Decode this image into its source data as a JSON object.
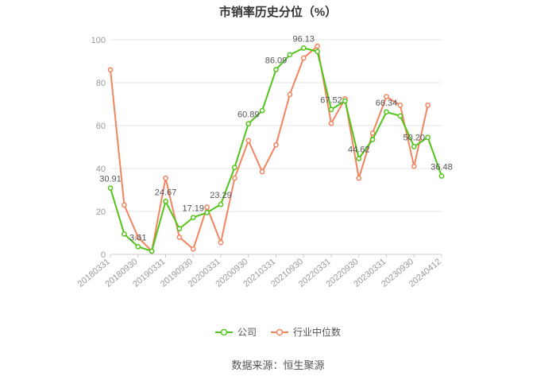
{
  "chart_data": {
    "type": "line",
    "title": "市销率历史分位（%）",
    "ylim": [
      0,
      100
    ],
    "y_ticks": [
      0,
      20,
      40,
      60,
      80,
      100
    ],
    "x_tick_labels": [
      "20180331",
      "20180930",
      "20190331",
      "20190930",
      "20200331",
      "20200930",
      "20210331",
      "20210930",
      "20220331",
      "20220930",
      "20230331",
      "20230930",
      "20240412"
    ],
    "grid": true,
    "legend_position": "bottom",
    "series": [
      {
        "name": "公司",
        "color": "#52c41a",
        "values": [
          30.91,
          9.5,
          3.61,
          1.5,
          24.67,
          12.0,
          17.19,
          19.5,
          23.29,
          40.5,
          60.89,
          67.0,
          86.09,
          93.0,
          96.13,
          94.5,
          67.52,
          71.5,
          44.62,
          53.5,
          66.34,
          64.5,
          50.2,
          54.5,
          36.48
        ],
        "labels": {
          "0": "30.91",
          "2": "3.61",
          "4": "24.67",
          "6": "17.19",
          "8": "23.29",
          "10": "60.89",
          "12": "86.09",
          "14": "96.13",
          "16": "67.52",
          "18": "44.62",
          "20": "66.34",
          "22": "50.20",
          "24": "36.48"
        }
      },
      {
        "name": "行业中位数",
        "color": "#f4845f",
        "values": [
          86.0,
          23.0,
          8.0,
          1.5,
          35.5,
          8.0,
          2.5,
          22.0,
          5.5,
          35.5,
          53.0,
          38.5,
          51.0,
          74.5,
          91.5,
          97.0,
          61.0,
          72.5,
          35.5,
          56.5,
          73.5,
          69.5,
          41.0,
          69.5,
          null
        ]
      }
    ]
  },
  "source_text": "数据来源：恒生聚源"
}
